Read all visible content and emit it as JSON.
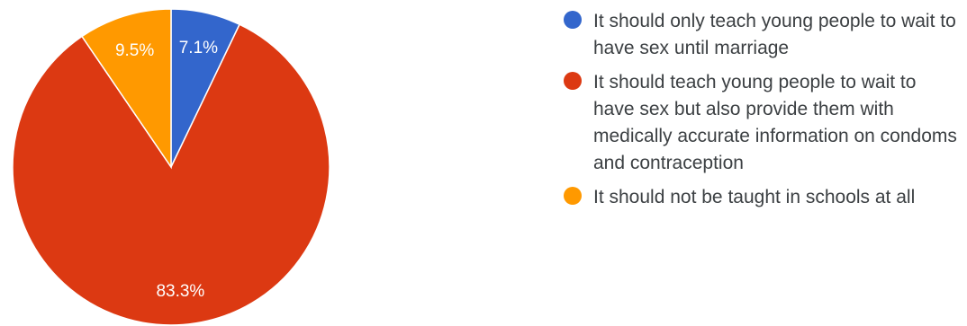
{
  "chart_data": {
    "type": "pie",
    "start_angle_deg": 90,
    "direction": "clockwise",
    "slices": [
      {
        "label": "It should only teach young people to wait to have sex until marriage",
        "value": 7.1,
        "value_label": "7.1%",
        "color": "#3366cc"
      },
      {
        "label": "It should teach young people to wait to have sex but also provide them with medically accurate information on condoms and contraception",
        "value": 83.3,
        "value_label": "83.3%",
        "color": "#dc3912"
      },
      {
        "label": "It should not be taught in schools at all",
        "value": 9.5,
        "value_label": "9.5%",
        "color": "#ff9900"
      }
    ]
  }
}
